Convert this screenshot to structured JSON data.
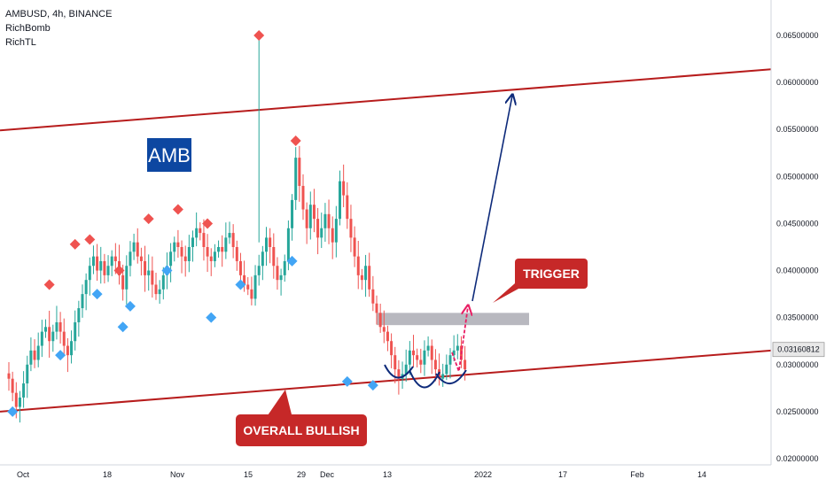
{
  "legend": {
    "symbol_line": "AMBUSD, 4h, BINANCE",
    "indicator_1": "RichBomb",
    "indicator_2": "RichTL"
  },
  "annotations": {
    "ticker_badge": "AMB",
    "trigger_label": "TRIGGER",
    "overall_label": "OVERALL BULLISH",
    "last_price": "0.03160812"
  },
  "colors": {
    "up_candle": "#26a69a",
    "down_candle": "#ef5350",
    "channel_line": "#b71c1c",
    "callout_fill": "#c62828",
    "badge_fill": "#0d47a1",
    "projection_arrow": "#0d2a7a",
    "trigger_arrow": "#e91e63",
    "resistance_zone": "#b0b0b8",
    "top_marker": "#ef5350",
    "bottom_marker": "#42a5f5"
  },
  "chart_data": {
    "type": "candlestick",
    "title": "AMBUSD, 4h, BINANCE",
    "y_axis": {
      "ylim": [
        0.02,
        0.067
      ],
      "ticks": [
        "0.02000000",
        "0.02500000",
        "0.03000000",
        "0.03500000",
        "0.04000000",
        "0.04500000",
        "0.05000000",
        "0.05500000",
        "0.06000000",
        "0.06500000"
      ],
      "tick_values": [
        0.02,
        0.025,
        0.03,
        0.035,
        0.04,
        0.045,
        0.05,
        0.055,
        0.06,
        0.065
      ]
    },
    "x_axis": {
      "ticks": [
        "Oct",
        "18",
        "Nov",
        "15",
        "29",
        "Dec",
        "13",
        "2022",
        "17",
        "Feb",
        "14"
      ],
      "tick_dates": [
        "2021-10-01",
        "2021-10-18",
        "2021-11-01",
        "2021-11-15",
        "2021-11-29",
        "2021-12-06",
        "2021-12-13",
        "2022-01-01",
        "2022-01-17",
        "2022-02-01",
        "2022-02-14"
      ]
    },
    "closes": [
      0.0285,
      0.027,
      0.0255,
      0.0265,
      0.028,
      0.03,
      0.0315,
      0.0305,
      0.032,
      0.0335,
      0.034,
      0.0325,
      0.0335,
      0.0345,
      0.0335,
      0.032,
      0.031,
      0.0325,
      0.0345,
      0.036,
      0.0375,
      0.039,
      0.0405,
      0.0415,
      0.04,
      0.041,
      0.0395,
      0.0405,
      0.0415,
      0.041,
      0.0395,
      0.038,
      0.0405,
      0.042,
      0.043,
      0.0415,
      0.041,
      0.0395,
      0.04,
      0.0385,
      0.0375,
      0.038,
      0.0395,
      0.0405,
      0.042,
      0.043,
      0.0425,
      0.0415,
      0.041,
      0.0425,
      0.0435,
      0.0445,
      0.044,
      0.0425,
      0.0415,
      0.041,
      0.042,
      0.0425,
      0.042,
      0.0435,
      0.044,
      0.0425,
      0.041,
      0.0395,
      0.0385,
      0.038,
      0.037,
      0.0395,
      0.0405,
      0.042,
      0.0435,
      0.0425,
      0.0405,
      0.039,
      0.0395,
      0.041,
      0.0445,
      0.0475,
      0.052,
      0.049,
      0.0465,
      0.0445,
      0.047,
      0.0455,
      0.0435,
      0.0445,
      0.046,
      0.0445,
      0.043,
      0.0455,
      0.0495,
      0.048,
      0.0455,
      0.0435,
      0.0415,
      0.0395,
      0.039,
      0.0405,
      0.038,
      0.0365,
      0.0355,
      0.034,
      0.0335,
      0.0325,
      0.031,
      0.0295,
      0.0285,
      0.029,
      0.03,
      0.0315,
      0.031,
      0.0305,
      0.03,
      0.0315,
      0.032,
      0.0305,
      0.0295,
      0.0285,
      0.029,
      0.03,
      0.031,
      0.0315,
      0.032,
      0.0305,
      0.0295
    ],
    "last_price": 0.03160812,
    "tops": [
      {
        "index": 11,
        "value": 0.0385
      },
      {
        "index": 18,
        "value": 0.0428
      },
      {
        "index": 22,
        "value": 0.0433
      },
      {
        "index": 30,
        "value": 0.04
      },
      {
        "index": 38,
        "value": 0.0455
      },
      {
        "index": 46,
        "value": 0.0465
      },
      {
        "index": 54,
        "value": 0.045
      },
      {
        "index": 68,
        "value": 0.065
      },
      {
        "index": 78,
        "value": 0.0538
      }
    ],
    "bottoms": [
      {
        "index": 1,
        "value": 0.025
      },
      {
        "index": 14,
        "value": 0.031
      },
      {
        "index": 24,
        "value": 0.0375
      },
      {
        "index": 31,
        "value": 0.034
      },
      {
        "index": 33,
        "value": 0.0362
      },
      {
        "index": 43,
        "value": 0.04
      },
      {
        "index": 55,
        "value": 0.035
      },
      {
        "index": 63,
        "value": 0.0385
      },
      {
        "index": 77,
        "value": 0.041
      },
      {
        "index": 92,
        "value": 0.0282
      },
      {
        "index": 99,
        "value": 0.0278
      }
    ],
    "channel_upper": {
      "start": 0.0549,
      "end": 0.0614
    },
    "channel_lower": {
      "start": 0.025,
      "end": 0.0315
    },
    "resistance_zone": {
      "low": 0.0342,
      "high": 0.0355
    },
    "grid": false,
    "legend_position": "top-left"
  }
}
